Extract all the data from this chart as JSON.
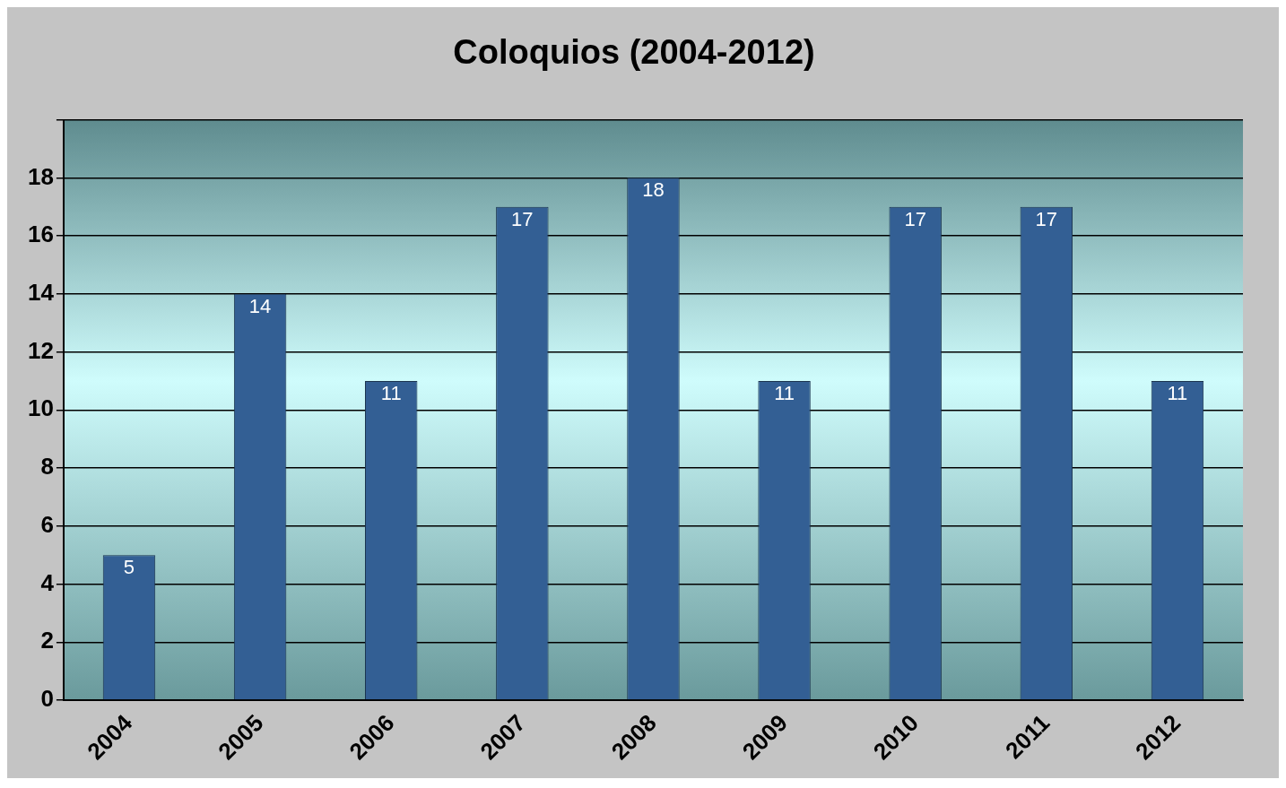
{
  "chart_data": {
    "type": "bar",
    "title": "Coloquios (2004-2012)",
    "categories": [
      "2004",
      "2005",
      "2006",
      "2007",
      "2008",
      "2009",
      "2010",
      "2011",
      "2012"
    ],
    "values": [
      5,
      14,
      11,
      17,
      18,
      11,
      17,
      17,
      11
    ],
    "color": "#335f94",
    "ylim": [
      0,
      20
    ],
    "yticks": [
      0,
      2,
      4,
      6,
      8,
      10,
      12,
      14,
      16,
      18,
      {
        "value": 20,
        "label": null
      }
    ],
    "grid": "y",
    "legend": false,
    "data_labels": true
  }
}
